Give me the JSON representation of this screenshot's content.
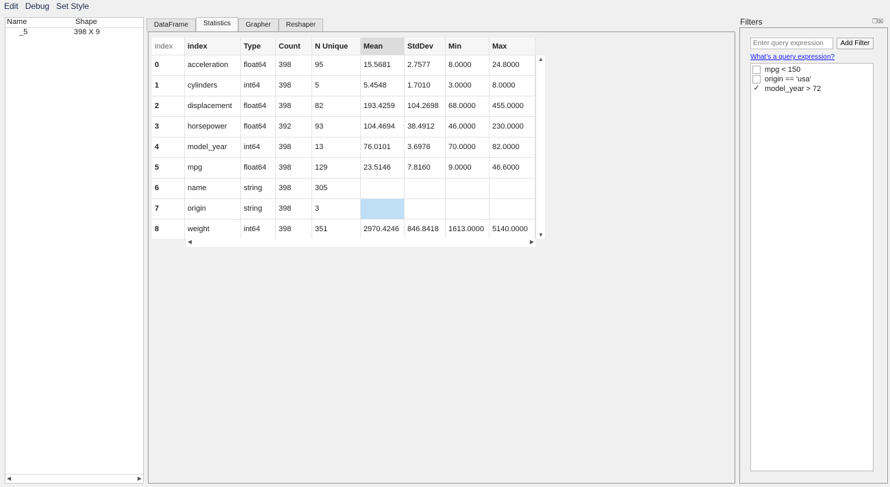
{
  "menu": [
    "Edit",
    "Debug",
    "Set Style"
  ],
  "left": {
    "headers": [
      "Name",
      "Shape"
    ],
    "rows": [
      {
        "name": "_5",
        "shape": "398 X 9"
      }
    ]
  },
  "tabs": [
    "DataFrame",
    "Statistics",
    "Grapher",
    "Reshaper"
  ],
  "active_tab": "Statistics",
  "table": {
    "headers": [
      "index",
      "index",
      "Type",
      "Count",
      "N Unique",
      "Mean",
      "StdDev",
      "Min",
      "Max"
    ],
    "rows": [
      [
        "0",
        "acceleration",
        "float64",
        "398",
        "95",
        "15.5681",
        "2.7577",
        "8.0000",
        "24.8000"
      ],
      [
        "1",
        "cylinders",
        "int64",
        "398",
        "5",
        "5.4548",
        "1.7010",
        "3.0000",
        "8.0000"
      ],
      [
        "2",
        "displacement",
        "float64",
        "398",
        "82",
        "193.4259",
        "104.2698",
        "68.0000",
        "455.0000"
      ],
      [
        "3",
        "horsepower",
        "float64",
        "392",
        "93",
        "104.4694",
        "38.4912",
        "46.0000",
        "230.0000"
      ],
      [
        "4",
        "model_year",
        "int64",
        "398",
        "13",
        "76.0101",
        "3.6976",
        "70.0000",
        "82.0000"
      ],
      [
        "5",
        "mpg",
        "float64",
        "398",
        "129",
        "23.5146",
        "7.8160",
        "9.0000",
        "46.6000"
      ],
      [
        "6",
        "name",
        "string",
        "398",
        "305",
        "",
        "",
        "",
        ""
      ],
      [
        "7",
        "origin",
        "string",
        "398",
        "3",
        "",
        "",
        "",
        ""
      ],
      [
        "8",
        "weight",
        "int64",
        "398",
        "351",
        "2970.4246",
        "846.8418",
        "1613.0000",
        "5140.0000"
      ]
    ],
    "selected_cell": {
      "row": 7,
      "column": "Mean"
    }
  },
  "filters": {
    "title": "Filters",
    "placeholder": "Enter query expression",
    "add_label": "Add Filter",
    "help_link": "What's a query expression?",
    "items": [
      {
        "label": "mpg < 150",
        "checked": false
      },
      {
        "label": "origin == 'usa'",
        "checked": false
      },
      {
        "label": "model_year > 72",
        "checked": true
      }
    ]
  },
  "colors": {
    "selection": "#bfdff7",
    "link": "#1a1aff"
  }
}
